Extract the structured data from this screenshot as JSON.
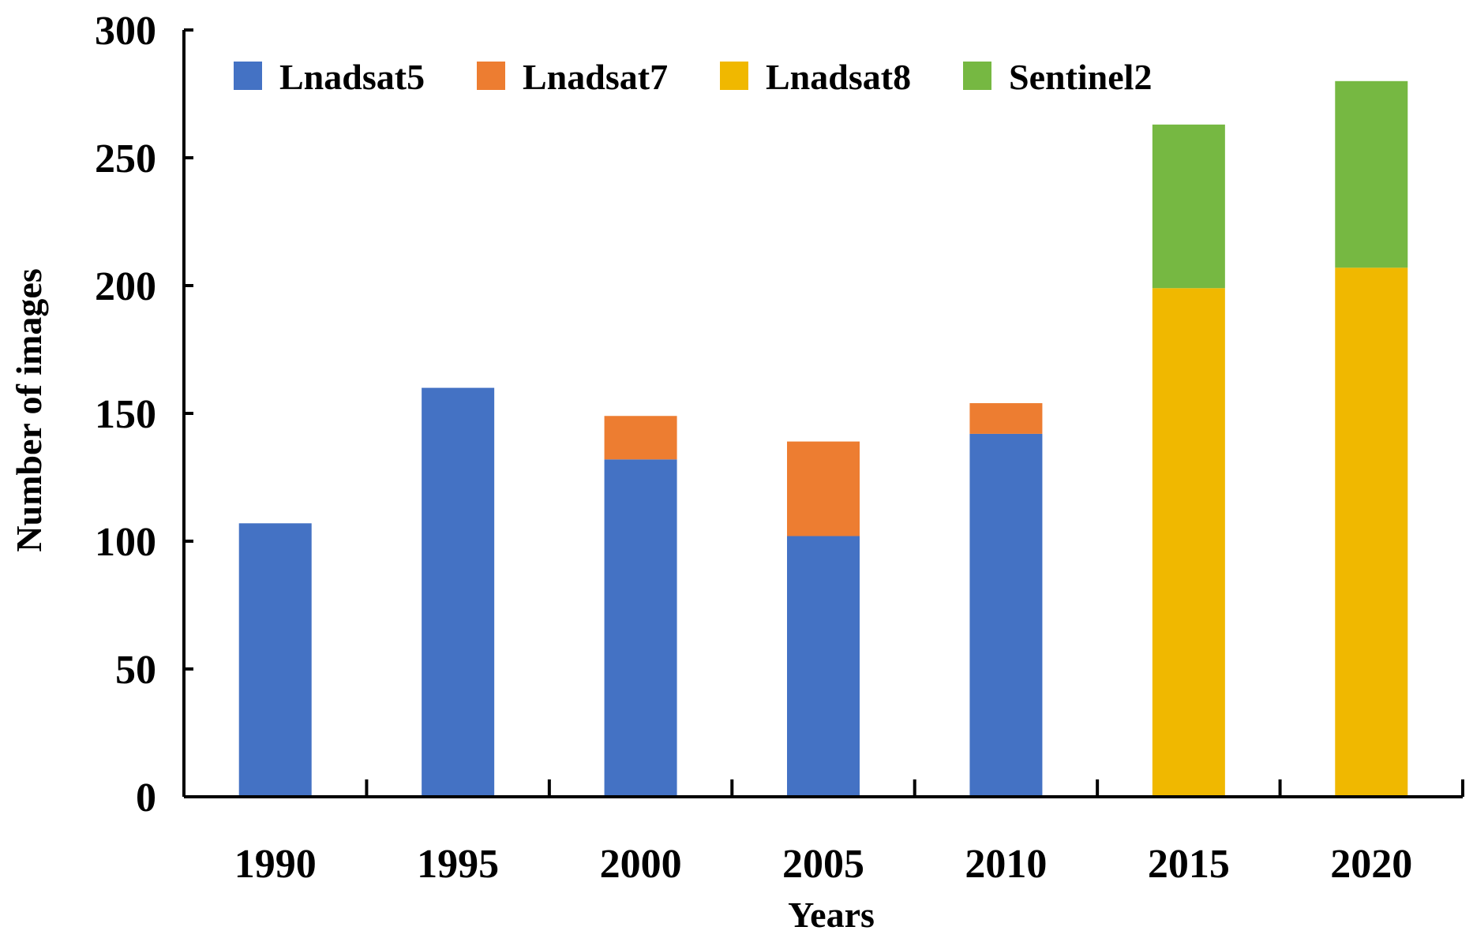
{
  "chart_data": {
    "type": "bar",
    "stacked": true,
    "title": "",
    "xlabel": "Years",
    "ylabel": "Number of images",
    "categories": [
      "1990",
      "1995",
      "2000",
      "2005",
      "2010",
      "2015",
      "2020"
    ],
    "series": [
      {
        "name": "Lnadsat5",
        "color": "#4472C4",
        "values": [
          107,
          160,
          132,
          102,
          142,
          0,
          0
        ]
      },
      {
        "name": "Lnadsat7",
        "color": "#ED7D31",
        "values": [
          0,
          0,
          17,
          37,
          12,
          0,
          0
        ]
      },
      {
        "name": "Lnadsat8",
        "color": "#F0B800",
        "values": [
          0,
          0,
          0,
          0,
          0,
          199,
          207
        ]
      },
      {
        "name": "Sentinel2",
        "color": "#76B842",
        "values": [
          0,
          0,
          0,
          0,
          0,
          64,
          73
        ]
      }
    ],
    "ylim": [
      0,
      300
    ],
    "yticks": [
      0,
      50,
      100,
      150,
      200,
      250,
      300
    ],
    "grid": false,
    "legend_position": "top-left"
  }
}
